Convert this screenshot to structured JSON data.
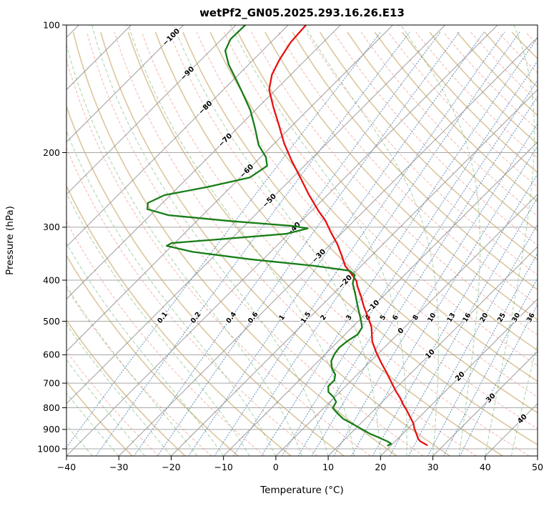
{
  "window": {
    "title": "wetPf2_GN05.2025.293.16.26.E13"
  },
  "chart_data": {
    "type": "line",
    "variant": "skew-t-log-p",
    "title": "wetPf2_GN05.2025.293.16.26.E13",
    "xlabel": "Temperature (°C)",
    "ylabel": "Pressure (hPa)",
    "xlim": [
      -40,
      50
    ],
    "ylim_hpa": [
      1040,
      100
    ],
    "skew_degrees": 45,
    "x_ticks": [
      -40,
      -30,
      -20,
      -10,
      0,
      10,
      20,
      30,
      40,
      50
    ],
    "x_tick_labels": [
      "−40",
      "−30",
      "−20",
      "−10",
      "0",
      "10",
      "20",
      "30",
      "40",
      "50"
    ],
    "y_ticks": [
      100,
      200,
      300,
      400,
      500,
      600,
      700,
      800,
      900,
      1000
    ],
    "y_tick_labels": [
      "100",
      "200",
      "300",
      "400",
      "500",
      "600",
      "700",
      "800",
      "900",
      "1000"
    ],
    "grid": true,
    "isotherms": {
      "start_c": -120,
      "end_c": 50,
      "step_c": 10,
      "color": "#8f8f8f"
    },
    "isotherm_labels": {
      "values": [
        -100,
        -90,
        -80,
        -70,
        -60,
        -50,
        -40,
        -30,
        -20,
        -10,
        0,
        10,
        20,
        30,
        40
      ],
      "placed_along_theta_k": 328,
      "neg_color": "#3070b3",
      "zero_color": "#8a8a8a",
      "pos_color": "#bf4040"
    },
    "dry_adiabats": {
      "theta_start_k": 243,
      "theta_end_k": 473,
      "theta_step_k": 10,
      "color": "#c7a05c"
    },
    "dry_adiabats_minor": {
      "theta_offset_k": 5,
      "color": "#ee8574"
    },
    "moist_adiabats": {
      "t_start_c": -40,
      "t_end_c": 50,
      "step_c": 5,
      "color": "#3fa03f"
    },
    "mixing_ratio": {
      "values_g_per_kg": [
        0.1,
        0.2,
        0.4,
        0.6,
        1,
        1.5,
        2,
        3,
        4,
        5,
        6,
        8,
        10,
        13,
        16,
        20,
        25,
        30,
        36
      ],
      "label_pressure_hpa": 490,
      "color": "#3b74ad"
    },
    "series": [
      {
        "name": "temperature",
        "color": "#e81010",
        "points": [
          [
            100,
            -76.6
          ],
          [
            110,
            -76.2
          ],
          [
            121,
            -75.0
          ],
          [
            131,
            -73.6
          ],
          [
            142,
            -71.3
          ],
          [
            156,
            -67.2
          ],
          [
            172,
            -62.7
          ],
          [
            190,
            -58.2
          ],
          [
            209,
            -53.4
          ],
          [
            230,
            -48.3
          ],
          [
            251,
            -43.7
          ],
          [
            274,
            -38.8
          ],
          [
            290,
            -35.4
          ],
          [
            308,
            -32.3
          ],
          [
            329,
            -28.7
          ],
          [
            350,
            -25.7
          ],
          [
            370,
            -23.1
          ],
          [
            390,
            -19.8
          ],
          [
            402,
            -18.0
          ],
          [
            413,
            -16.9
          ],
          [
            437,
            -14.2
          ],
          [
            464,
            -11.5
          ],
          [
            491,
            -8.7
          ],
          [
            517,
            -6.3
          ],
          [
            559,
            -3.4
          ],
          [
            591,
            -0.7
          ],
          [
            625,
            2.2
          ],
          [
            663,
            5.4
          ],
          [
            702,
            8.4
          ],
          [
            733,
            10.7
          ],
          [
            759,
            12.7
          ],
          [
            786,
            14.5
          ],
          [
            813,
            16.4
          ],
          [
            841,
            18.2
          ],
          [
            870,
            20.0
          ],
          [
            897,
            21.3
          ],
          [
            925,
            22.8
          ],
          [
            947,
            23.9
          ],
          [
            960,
            24.8
          ],
          [
            980,
            26.8
          ]
        ]
      },
      {
        "name": "dewpoint",
        "color": "#177d17",
        "points": [
          [
            100,
            -88.2
          ],
          [
            108,
            -88.3
          ],
          [
            115,
            -87.1
          ],
          [
            124,
            -83.8
          ],
          [
            134,
            -79.7
          ],
          [
            145,
            -75.6
          ],
          [
            159,
            -70.9
          ],
          [
            176,
            -66.4
          ],
          [
            192,
            -62.7
          ],
          [
            205,
            -59.0
          ],
          [
            215,
            -57.1
          ],
          [
            229,
            -58.2
          ],
          [
            241,
            -64.4
          ],
          [
            252,
            -71.1
          ],
          [
            263,
            -72.8
          ],
          [
            272,
            -71.7
          ],
          [
            281,
            -66.5
          ],
          [
            290,
            -53.8
          ],
          [
            298,
            -40.7
          ],
          [
            302,
            -37.4
          ],
          [
            311,
            -40.5
          ],
          [
            320,
            -51.9
          ],
          [
            327,
            -60.6
          ],
          [
            332,
            -61.0
          ],
          [
            343,
            -54.9
          ],
          [
            357,
            -42.6
          ],
          [
            370,
            -29.1
          ],
          [
            380,
            -21.3
          ],
          [
            389,
            -19.5
          ],
          [
            407,
            -18.3
          ],
          [
            432,
            -15.7
          ],
          [
            464,
            -12.7
          ],
          [
            497,
            -9.7
          ],
          [
            517,
            -8.1
          ],
          [
            537,
            -7.6
          ],
          [
            557,
            -8.3
          ],
          [
            577,
            -8.6
          ],
          [
            597,
            -8.3
          ],
          [
            620,
            -7.6
          ],
          [
            645,
            -6.1
          ],
          [
            668,
            -4.2
          ],
          [
            689,
            -3.3
          ],
          [
            712,
            -3.3
          ],
          [
            734,
            -2.2
          ],
          [
            754,
            -0.3
          ],
          [
            775,
            1.2
          ],
          [
            801,
            1.7
          ],
          [
            822,
            3.4
          ],
          [
            850,
            5.8
          ],
          [
            873,
            8.5
          ],
          [
            897,
            11.1
          ],
          [
            922,
            13.8
          ],
          [
            943,
            16.5
          ],
          [
            962,
            18.7
          ],
          [
            973,
            19.7
          ],
          [
            982,
            19.4
          ]
        ]
      }
    ]
  }
}
